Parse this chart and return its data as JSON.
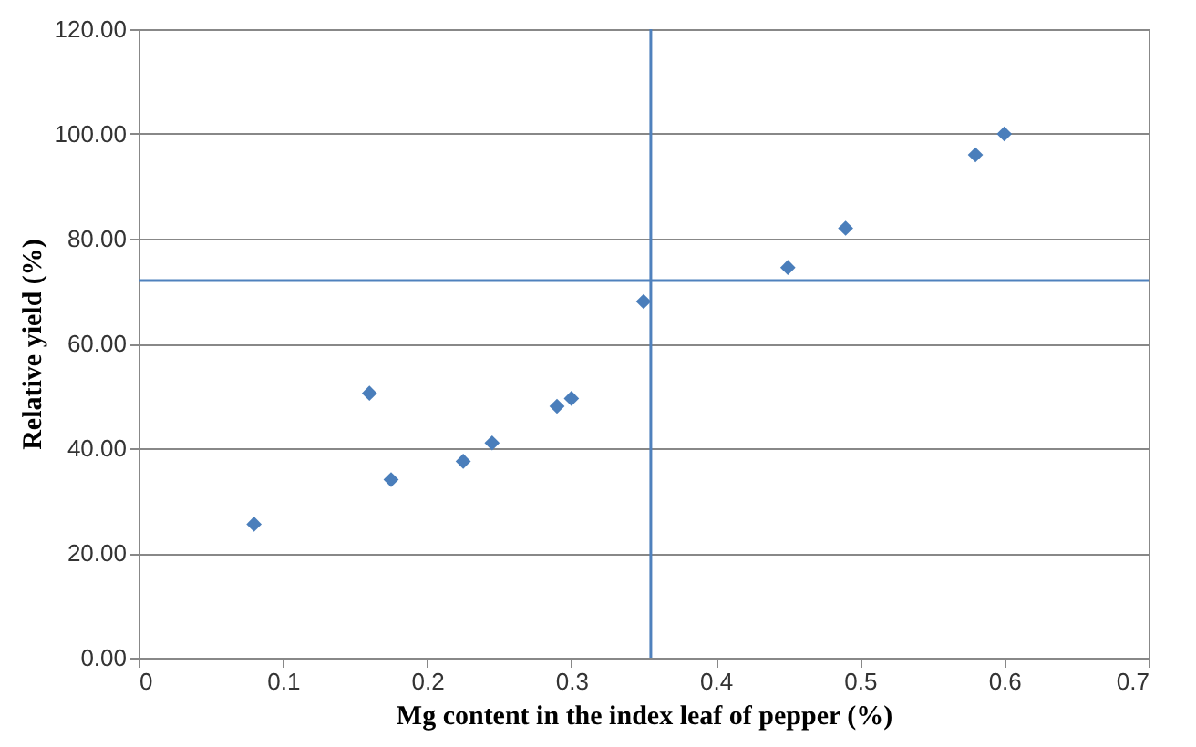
{
  "chart_data": {
    "type": "scatter",
    "xlabel": "Mg content in the index leaf of pepper (%)",
    "ylabel": "Relative yield  (%)",
    "x": [
      0.08,
      0.16,
      0.175,
      0.225,
      0.245,
      0.29,
      0.3,
      0.35,
      0.45,
      0.49,
      0.58,
      0.6
    ],
    "series": [
      {
        "color": "#4a7ebb",
        "values": [
          25.5,
          50.5,
          34,
          37.5,
          41,
          48,
          49.5,
          68,
          74.5,
          82,
          96,
          100
        ]
      }
    ],
    "marker": "diamond",
    "xlim": [
      0,
      0.7
    ],
    "xticks": [
      0,
      0.1,
      0.2,
      0.3,
      0.4,
      0.5,
      0.6,
      0.7
    ],
    "ylim": [
      0,
      120
    ],
    "yticks": [
      {
        "value": 0,
        "label": "0.00"
      },
      {
        "value": 20,
        "label": "20.00"
      },
      {
        "value": 40,
        "label": "40.00"
      },
      {
        "value": 60,
        "label": "60.00"
      },
      {
        "value": 80,
        "label": "80.00"
      },
      {
        "value": 100,
        "label": "100.00"
      },
      {
        "value": 120,
        "label": "120.00"
      }
    ],
    "grid": "y",
    "ref_lines": [
      {
        "axis": "x",
        "value": 0.355,
        "color": "#4f81bd"
      },
      {
        "axis": "y",
        "value": 72,
        "color": "#4f81bd"
      }
    ]
  }
}
